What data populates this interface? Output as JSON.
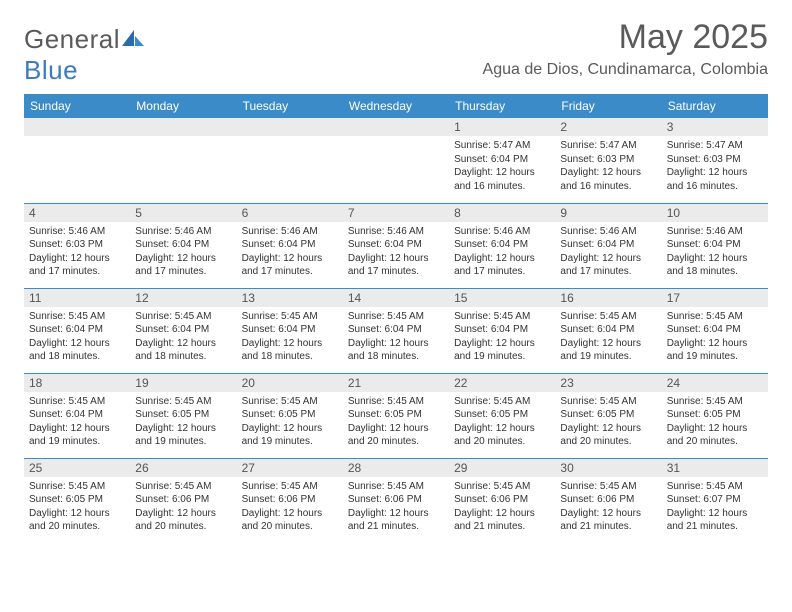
{
  "logo": {
    "part1": "General",
    "part2": "Blue"
  },
  "title": "May 2025",
  "location": "Agua de Dios, Cundinamarca, Colombia",
  "colors": {
    "header_bg": "#3b8bc9",
    "header_text": "#ffffff",
    "row_divider": "#3b8bc9",
    "daynum_bg": "#ebebeb",
    "text": "#333333",
    "title_text": "#5a5a5a",
    "logo_blue": "#3b7bbf"
  },
  "day_headers": [
    "Sunday",
    "Monday",
    "Tuesday",
    "Wednesday",
    "Thursday",
    "Friday",
    "Saturday"
  ],
  "weeks": [
    [
      {
        "empty": true
      },
      {
        "empty": true
      },
      {
        "empty": true
      },
      {
        "empty": true
      },
      {
        "num": "1",
        "sunrise": "Sunrise: 5:47 AM",
        "sunset": "Sunset: 6:04 PM",
        "dl1": "Daylight: 12 hours",
        "dl2": "and 16 minutes."
      },
      {
        "num": "2",
        "sunrise": "Sunrise: 5:47 AM",
        "sunset": "Sunset: 6:03 PM",
        "dl1": "Daylight: 12 hours",
        "dl2": "and 16 minutes."
      },
      {
        "num": "3",
        "sunrise": "Sunrise: 5:47 AM",
        "sunset": "Sunset: 6:03 PM",
        "dl1": "Daylight: 12 hours",
        "dl2": "and 16 minutes."
      }
    ],
    [
      {
        "num": "4",
        "sunrise": "Sunrise: 5:46 AM",
        "sunset": "Sunset: 6:03 PM",
        "dl1": "Daylight: 12 hours",
        "dl2": "and 17 minutes."
      },
      {
        "num": "5",
        "sunrise": "Sunrise: 5:46 AM",
        "sunset": "Sunset: 6:04 PM",
        "dl1": "Daylight: 12 hours",
        "dl2": "and 17 minutes."
      },
      {
        "num": "6",
        "sunrise": "Sunrise: 5:46 AM",
        "sunset": "Sunset: 6:04 PM",
        "dl1": "Daylight: 12 hours",
        "dl2": "and 17 minutes."
      },
      {
        "num": "7",
        "sunrise": "Sunrise: 5:46 AM",
        "sunset": "Sunset: 6:04 PM",
        "dl1": "Daylight: 12 hours",
        "dl2": "and 17 minutes."
      },
      {
        "num": "8",
        "sunrise": "Sunrise: 5:46 AM",
        "sunset": "Sunset: 6:04 PM",
        "dl1": "Daylight: 12 hours",
        "dl2": "and 17 minutes."
      },
      {
        "num": "9",
        "sunrise": "Sunrise: 5:46 AM",
        "sunset": "Sunset: 6:04 PM",
        "dl1": "Daylight: 12 hours",
        "dl2": "and 17 minutes."
      },
      {
        "num": "10",
        "sunrise": "Sunrise: 5:46 AM",
        "sunset": "Sunset: 6:04 PM",
        "dl1": "Daylight: 12 hours",
        "dl2": "and 18 minutes."
      }
    ],
    [
      {
        "num": "11",
        "sunrise": "Sunrise: 5:45 AM",
        "sunset": "Sunset: 6:04 PM",
        "dl1": "Daylight: 12 hours",
        "dl2": "and 18 minutes."
      },
      {
        "num": "12",
        "sunrise": "Sunrise: 5:45 AM",
        "sunset": "Sunset: 6:04 PM",
        "dl1": "Daylight: 12 hours",
        "dl2": "and 18 minutes."
      },
      {
        "num": "13",
        "sunrise": "Sunrise: 5:45 AM",
        "sunset": "Sunset: 6:04 PM",
        "dl1": "Daylight: 12 hours",
        "dl2": "and 18 minutes."
      },
      {
        "num": "14",
        "sunrise": "Sunrise: 5:45 AM",
        "sunset": "Sunset: 6:04 PM",
        "dl1": "Daylight: 12 hours",
        "dl2": "and 18 minutes."
      },
      {
        "num": "15",
        "sunrise": "Sunrise: 5:45 AM",
        "sunset": "Sunset: 6:04 PM",
        "dl1": "Daylight: 12 hours",
        "dl2": "and 19 minutes."
      },
      {
        "num": "16",
        "sunrise": "Sunrise: 5:45 AM",
        "sunset": "Sunset: 6:04 PM",
        "dl1": "Daylight: 12 hours",
        "dl2": "and 19 minutes."
      },
      {
        "num": "17",
        "sunrise": "Sunrise: 5:45 AM",
        "sunset": "Sunset: 6:04 PM",
        "dl1": "Daylight: 12 hours",
        "dl2": "and 19 minutes."
      }
    ],
    [
      {
        "num": "18",
        "sunrise": "Sunrise: 5:45 AM",
        "sunset": "Sunset: 6:04 PM",
        "dl1": "Daylight: 12 hours",
        "dl2": "and 19 minutes."
      },
      {
        "num": "19",
        "sunrise": "Sunrise: 5:45 AM",
        "sunset": "Sunset: 6:05 PM",
        "dl1": "Daylight: 12 hours",
        "dl2": "and 19 minutes."
      },
      {
        "num": "20",
        "sunrise": "Sunrise: 5:45 AM",
        "sunset": "Sunset: 6:05 PM",
        "dl1": "Daylight: 12 hours",
        "dl2": "and 19 minutes."
      },
      {
        "num": "21",
        "sunrise": "Sunrise: 5:45 AM",
        "sunset": "Sunset: 6:05 PM",
        "dl1": "Daylight: 12 hours",
        "dl2": "and 20 minutes."
      },
      {
        "num": "22",
        "sunrise": "Sunrise: 5:45 AM",
        "sunset": "Sunset: 6:05 PM",
        "dl1": "Daylight: 12 hours",
        "dl2": "and 20 minutes."
      },
      {
        "num": "23",
        "sunrise": "Sunrise: 5:45 AM",
        "sunset": "Sunset: 6:05 PM",
        "dl1": "Daylight: 12 hours",
        "dl2": "and 20 minutes."
      },
      {
        "num": "24",
        "sunrise": "Sunrise: 5:45 AM",
        "sunset": "Sunset: 6:05 PM",
        "dl1": "Daylight: 12 hours",
        "dl2": "and 20 minutes."
      }
    ],
    [
      {
        "num": "25",
        "sunrise": "Sunrise: 5:45 AM",
        "sunset": "Sunset: 6:05 PM",
        "dl1": "Daylight: 12 hours",
        "dl2": "and 20 minutes."
      },
      {
        "num": "26",
        "sunrise": "Sunrise: 5:45 AM",
        "sunset": "Sunset: 6:06 PM",
        "dl1": "Daylight: 12 hours",
        "dl2": "and 20 minutes."
      },
      {
        "num": "27",
        "sunrise": "Sunrise: 5:45 AM",
        "sunset": "Sunset: 6:06 PM",
        "dl1": "Daylight: 12 hours",
        "dl2": "and 20 minutes."
      },
      {
        "num": "28",
        "sunrise": "Sunrise: 5:45 AM",
        "sunset": "Sunset: 6:06 PM",
        "dl1": "Daylight: 12 hours",
        "dl2": "and 21 minutes."
      },
      {
        "num": "29",
        "sunrise": "Sunrise: 5:45 AM",
        "sunset": "Sunset: 6:06 PM",
        "dl1": "Daylight: 12 hours",
        "dl2": "and 21 minutes."
      },
      {
        "num": "30",
        "sunrise": "Sunrise: 5:45 AM",
        "sunset": "Sunset: 6:06 PM",
        "dl1": "Daylight: 12 hours",
        "dl2": "and 21 minutes."
      },
      {
        "num": "31",
        "sunrise": "Sunrise: 5:45 AM",
        "sunset": "Sunset: 6:07 PM",
        "dl1": "Daylight: 12 hours",
        "dl2": "and 21 minutes."
      }
    ]
  ]
}
